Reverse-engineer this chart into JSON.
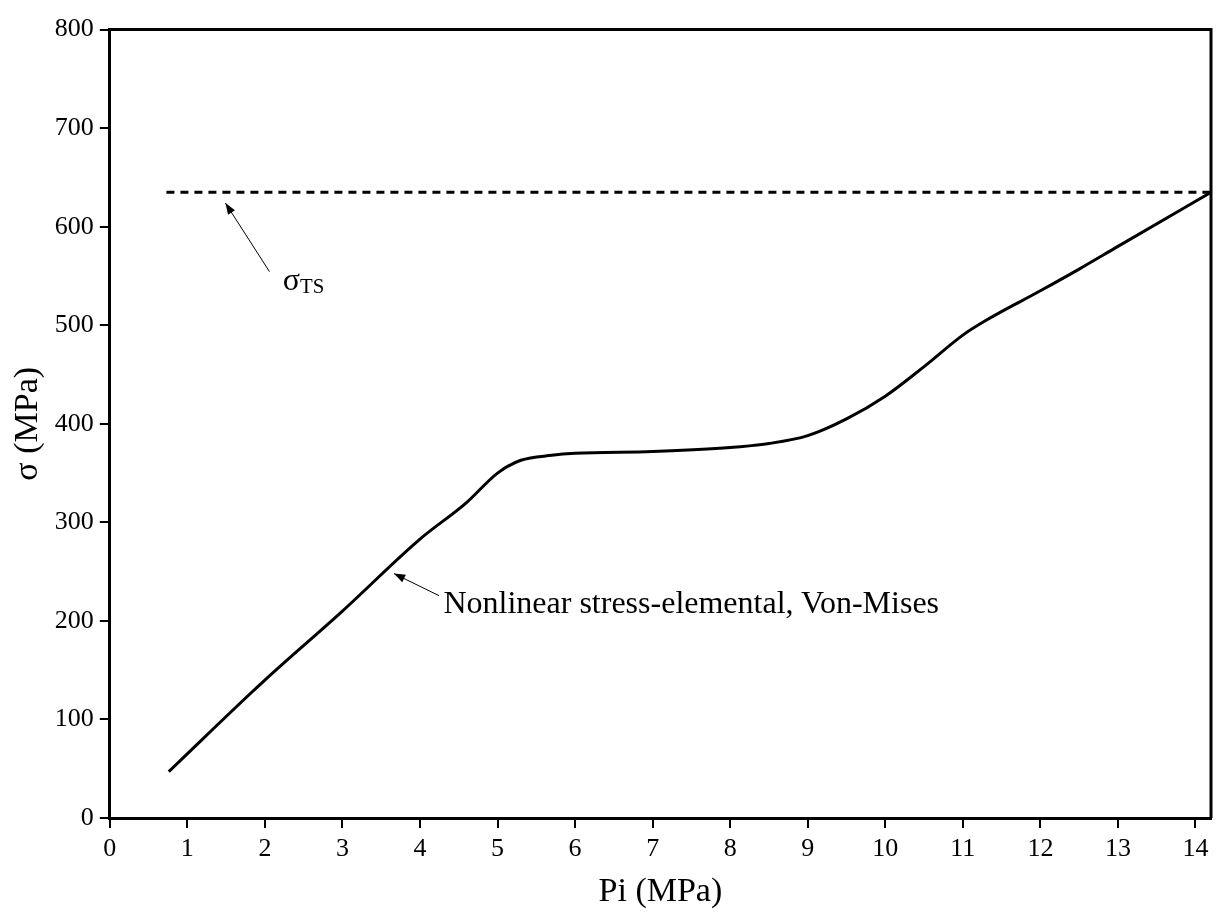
{
  "chart_data": {
    "type": "line",
    "xlabel": "Pi (MPa)",
    "ylabel": "σ (MPa)",
    "xlim": [
      0,
      14.2
    ],
    "xticks": [
      0,
      1,
      2,
      3,
      4,
      5,
      6,
      7,
      8,
      9,
      10,
      11,
      12,
      13,
      14
    ],
    "ylim": [
      0,
      800
    ],
    "yticks": [
      0,
      100,
      200,
      300,
      400,
      500,
      600,
      700,
      800
    ],
    "grid": false,
    "legend": false,
    "marker": "none",
    "series": [
      {
        "color": "#000000",
        "line_style": "solid",
        "x": [
          0.76,
          2,
          3,
          4,
          4.6,
          5,
          5.3,
          5.7,
          6,
          7,
          8,
          8.5,
          9,
          9.5,
          10,
          10.5,
          11,
          11.3,
          12,
          12.5,
          13,
          14.2
        ],
        "values": [
          47,
          140,
          210,
          283,
          320,
          350,
          363,
          368,
          370,
          372,
          376,
          380,
          388,
          405,
          428,
          458,
          490,
          505,
          535,
          557,
          580,
          635
        ]
      },
      {
        "color": "#000000",
        "line_style": "dashed",
        "x": [
          0.73,
          14.2
        ],
        "values": [
          635,
          635
        ]
      }
    ],
    "annotations": [
      "σ$_{TS}$",
      "Nonlinear stress-elemental, Von-Mises"
    ]
  }
}
